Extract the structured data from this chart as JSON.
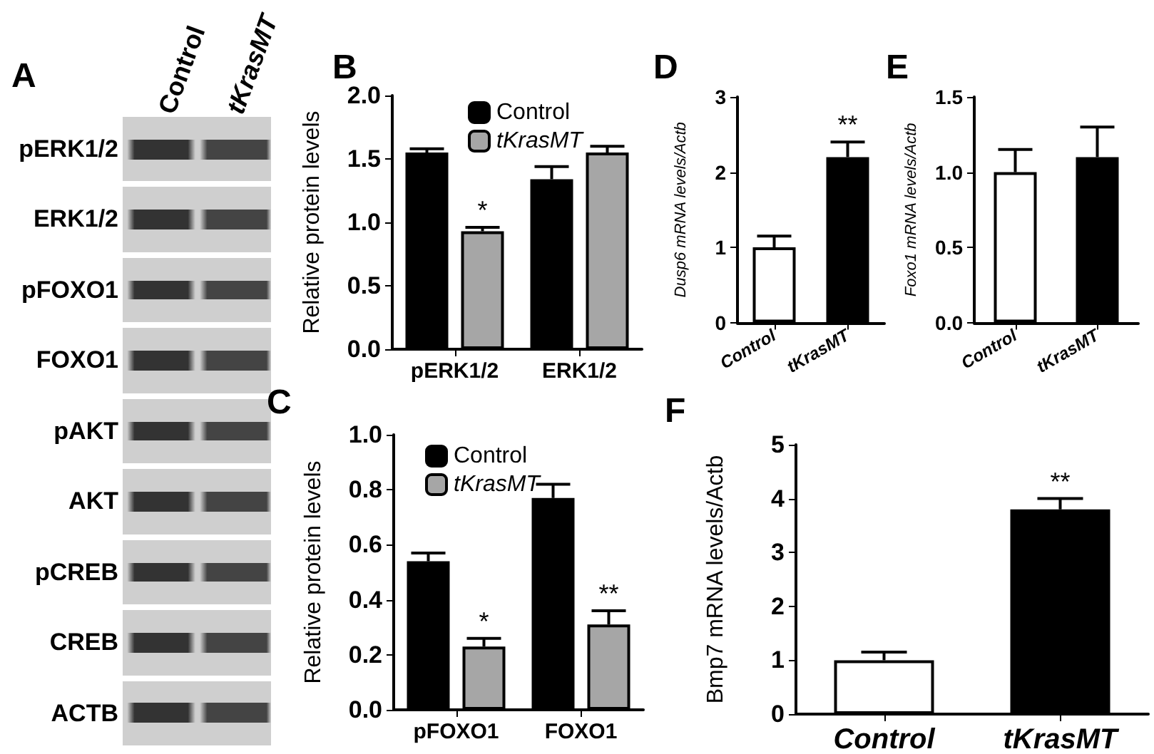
{
  "chart_data": [
    {
      "type": "other",
      "title": "A",
      "categories": [
        "pERK1/2",
        "ERK1/2",
        "pFOXO1",
        "FOXO1",
        "pAKT",
        "AKT",
        "pCREB",
        "CREB",
        "ACTB"
      ],
      "annotations": [
        "Control",
        "tKrasMT"
      ]
    },
    {
      "type": "bar",
      "title": "B",
      "ylabel": "Relative protein levels",
      "categories": [
        "pERK1/2",
        "ERK1/2"
      ],
      "series": [
        {
          "name": "Control",
          "color": "#000000",
          "values": [
            1.55,
            1.34
          ],
          "errors": [
            0.03,
            0.1
          ]
        },
        {
          "name": "tKrasMT",
          "color": "#a6a6a6",
          "values": [
            0.93,
            1.55
          ],
          "errors": [
            0.03,
            0.05
          ]
        }
      ],
      "ylim": [
        0,
        2
      ],
      "yticks": [
        {
          "value": 0,
          "label": "0.0"
        },
        {
          "value": 0.5,
          "label": "0.5"
        },
        {
          "value": 1,
          "label": "1.0"
        },
        {
          "value": 1.5,
          "label": "1.5"
        },
        {
          "value": 2,
          "label": "2.0"
        }
      ],
      "legend": "top",
      "grid": false,
      "annotations": [
        "*"
      ]
    },
    {
      "type": "bar",
      "title": "C",
      "ylabel": "Relative protein levels",
      "categories": [
        "pFOXO1",
        "FOXO1"
      ],
      "series": [
        {
          "name": "Control",
          "color": "#000000",
          "values": [
            0.54,
            0.77
          ],
          "errors": [
            0.03,
            0.05
          ]
        },
        {
          "name": "tKrasMT",
          "color": "#a6a6a6",
          "values": [
            0.23,
            0.31
          ],
          "errors": [
            0.03,
            0.05
          ]
        }
      ],
      "ylim": [
        0,
        1
      ],
      "yticks": [
        {
          "value": 0,
          "label": "0.0"
        },
        {
          "value": 0.2,
          "label": "0.2"
        },
        {
          "value": 0.4,
          "label": "0.4"
        },
        {
          "value": 0.6,
          "label": "0.6"
        },
        {
          "value": 0.8,
          "label": "0.8"
        },
        {
          "value": 1,
          "label": "1.0"
        }
      ],
      "legend": "top",
      "grid": false,
      "annotations": [
        "*",
        "**"
      ]
    },
    {
      "type": "bar",
      "title": "D",
      "ylabel": "Dusp6 mRNA levels/Actb",
      "categories": [
        "Control",
        "tKrasMT"
      ],
      "values": [
        1.0,
        2.2
      ],
      "colors": [
        "#ffffff",
        "#000000"
      ],
      "errors": [
        0.15,
        0.2
      ],
      "ylim": [
        0,
        3
      ],
      "yticks": [
        0,
        1,
        2,
        3
      ],
      "grid": false,
      "annotations": [
        "**"
      ]
    },
    {
      "type": "bar",
      "title": "E",
      "ylabel": "Foxo1 mRNA levels/Actb",
      "categories": [
        "Control",
        "tKrasMT"
      ],
      "values": [
        1.0,
        1.1
      ],
      "colors": [
        "#ffffff",
        "#000000"
      ],
      "errors": [
        0.15,
        0.2
      ],
      "ylim": [
        0,
        1.5
      ],
      "yticks": [
        {
          "value": 0,
          "label": "0.0"
        },
        {
          "value": 0.5,
          "label": "0.5"
        },
        {
          "value": 1,
          "label": "1.0"
        },
        {
          "value": 1.5,
          "label": "1.5"
        }
      ],
      "grid": false
    },
    {
      "type": "bar",
      "title": "F",
      "ylabel": "Bmp7 mRNA levels/Actb",
      "categories": [
        "Control",
        "tKrasMT"
      ],
      "values": [
        1.0,
        3.8
      ],
      "colors": [
        "#ffffff",
        "#000000"
      ],
      "errors": [
        0.15,
        0.2
      ],
      "ylim": [
        0,
        5
      ],
      "yticks": [
        0,
        1,
        2,
        3,
        4,
        5
      ],
      "grid": false,
      "annotations": [
        "**"
      ]
    }
  ]
}
